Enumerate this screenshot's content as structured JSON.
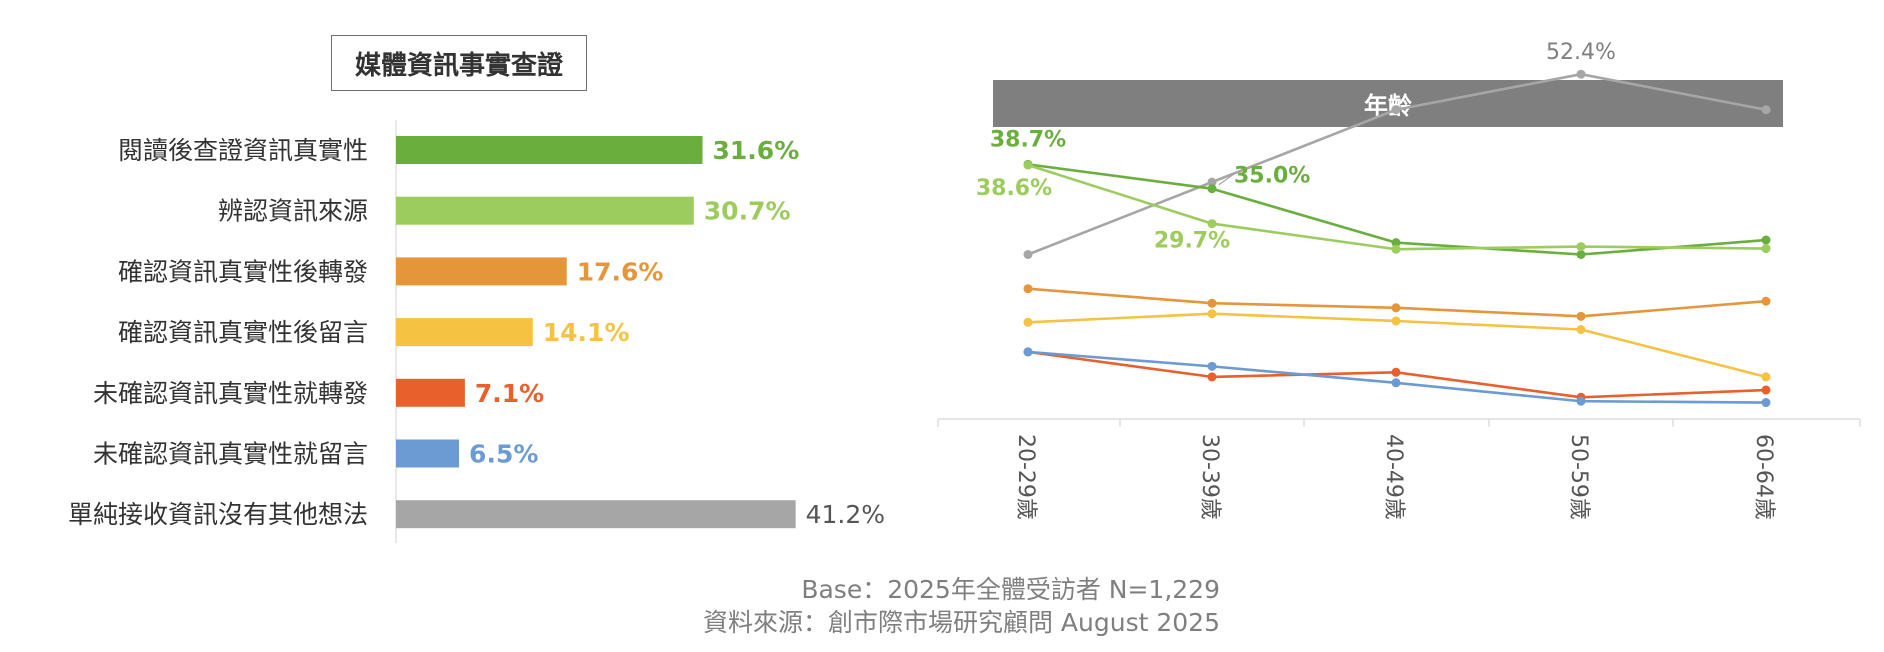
{
  "title": "媒體資訊事實查證",
  "age_header": "年齡",
  "footer": {
    "base": "Base：2025年全體受訪者 N=1,229",
    "source": "資料來源：創市際市場研究顧問 August 2025"
  },
  "chart_data": [
    {
      "type": "bar",
      "orientation": "horizontal",
      "categories": [
        "閱讀後查證資訊真實性",
        "辨認資訊來源",
        "確認資訊真實性後轉發",
        "確認資訊真實性後留言",
        "未確認資訊真實性就轉發",
        "未確認資訊真實性就留言",
        "單純接收資訊沒有其他想法"
      ],
      "values": [
        31.6,
        30.7,
        17.6,
        14.1,
        7.1,
        6.5,
        41.2
      ],
      "value_labels": [
        "31.6%",
        "30.7%",
        "17.6%",
        "14.1%",
        "7.1%",
        "6.5%",
        "41.2%"
      ],
      "colors": [
        "#6aaf3d",
        "#9ccc5e",
        "#e6963a",
        "#f5c242",
        "#e8602c",
        "#6b9bd2",
        "#a6a6a6"
      ],
      "xlim": [
        0,
        50
      ]
    },
    {
      "type": "line",
      "categories": [
        "20-29歲",
        "30-39歲",
        "40-49歲",
        "50-59歲",
        "60-64歲"
      ],
      "ylim": [
        0,
        60
      ],
      "series": [
        {
          "key": "grey",
          "color": "#a6a6a6",
          "values": [
            25.0,
            36.0,
            47.0,
            52.4,
            47.0
          ]
        },
        {
          "key": "dgreen",
          "color": "#6aaf3d",
          "values": [
            38.7,
            35.0,
            26.8,
            25.0,
            27.2
          ]
        },
        {
          "key": "lgreen",
          "color": "#9ccc5e",
          "values": [
            38.6,
            29.7,
            25.8,
            26.2,
            25.9
          ]
        },
        {
          "key": "orange",
          "color": "#e6963a",
          "values": [
            19.8,
            17.6,
            16.9,
            15.6,
            17.9
          ]
        },
        {
          "key": "yellow",
          "color": "#f5c242",
          "values": [
            14.7,
            16.0,
            14.9,
            13.6,
            6.4
          ]
        },
        {
          "key": "red",
          "color": "#e8602c",
          "values": [
            10.2,
            6.4,
            7.1,
            3.3,
            4.4
          ]
        },
        {
          "key": "blue",
          "color": "#6b9bd2",
          "values": [
            10.2,
            8.0,
            5.5,
            2.7,
            2.5
          ]
        }
      ],
      "annotations": [
        {
          "series": "dgreen",
          "index": 0,
          "text": "38.7%"
        },
        {
          "series": "lgreen",
          "index": 0,
          "text": "38.6%"
        },
        {
          "series": "dgreen",
          "index": 1,
          "text": "35.0%"
        },
        {
          "series": "lgreen",
          "index": 1,
          "text": "29.7%"
        },
        {
          "series": "grey",
          "index": 3,
          "text": "52.4%"
        }
      ]
    }
  ]
}
